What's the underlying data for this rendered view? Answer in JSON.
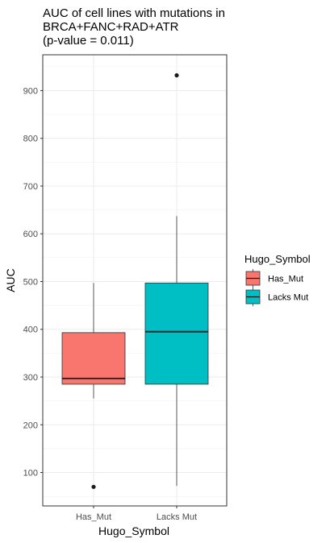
{
  "chart_data": {
    "type": "boxplot",
    "title_lines": [
      "AUC of cell lines with mutations in",
      "BRCA+FANC+RAD+ATR",
      "(p-value = 0.011)"
    ],
    "xlabel": "Hugo_Symbol",
    "ylabel": "AUC",
    "categories": [
      "Has_Mut",
      "Lacks Mut"
    ],
    "y_ticks": [
      100,
      200,
      300,
      400,
      500,
      600,
      700,
      800,
      900
    ],
    "ylim": [
      30,
      975
    ],
    "grid": true,
    "legend": {
      "title": "Hugo_Symbol",
      "position": "right",
      "entries": [
        "Has_Mut",
        "Lacks Mut"
      ]
    },
    "series": [
      {
        "category": "Has_Mut",
        "color": "#F8766D",
        "whisker_low": 255,
        "q1": 285,
        "median": 297,
        "q3": 393,
        "whisker_high": 497,
        "outliers": [
          70
        ]
      },
      {
        "category": "Lacks Mut",
        "color": "#00BFC4",
        "whisker_low": 72,
        "q1": 285,
        "median": 395,
        "q3": 497,
        "whisker_high": 637,
        "outliers": [
          932
        ]
      }
    ]
  }
}
